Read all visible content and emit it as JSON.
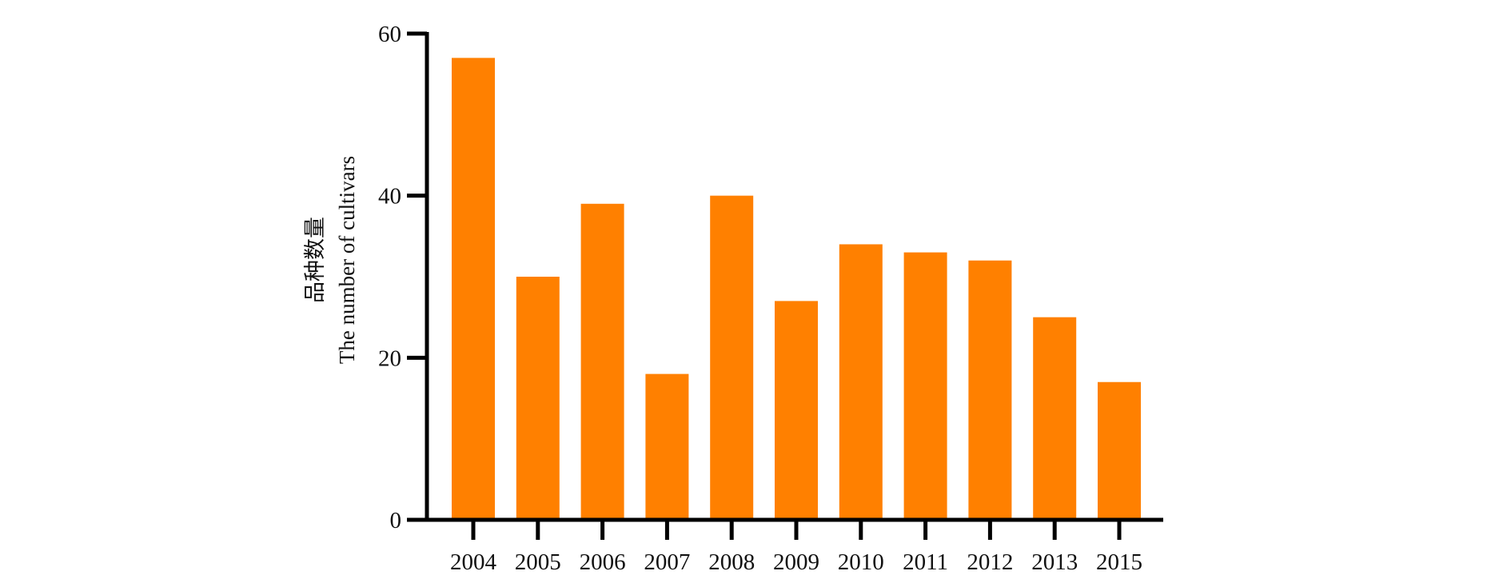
{
  "chart_data": {
    "type": "bar",
    "title": "",
    "xlabel": "",
    "ylabel_lines": [
      "品种数量",
      "The number of cultivars"
    ],
    "categories": [
      "2004",
      "2005",
      "2006",
      "2007",
      "2008",
      "2009",
      "2010",
      "2011",
      "2012",
      "2013",
      "2015"
    ],
    "values": [
      57,
      30,
      39,
      18,
      40,
      27,
      34,
      33,
      32,
      25,
      17
    ],
    "ylim": [
      0,
      60
    ],
    "yticks": [
      0,
      20,
      40,
      60
    ],
    "grid": false,
    "legend": "none",
    "bar_color": "#FF8000",
    "axis_color": "#000000"
  }
}
